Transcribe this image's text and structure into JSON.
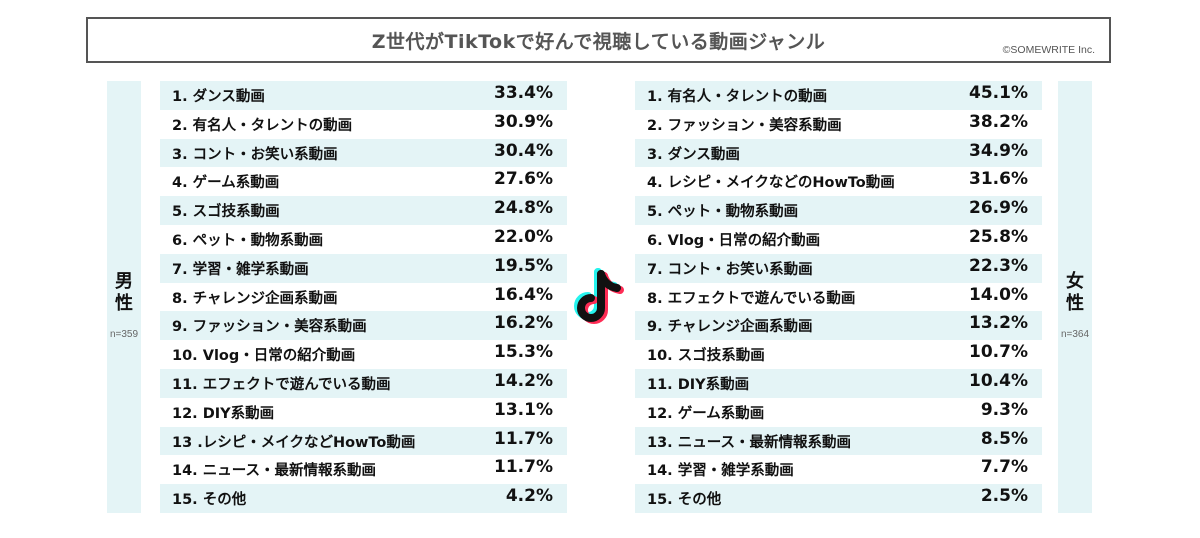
{
  "header": {
    "title": "Z世代がTikTokで好んで視聴している動画ジャンル",
    "copyright": "©SOMEWRITE Inc."
  },
  "male": {
    "label_line1": "男",
    "label_line2": "性",
    "n": "n=359"
  },
  "female": {
    "label_line1": "女",
    "label_line2": "性",
    "n": "n=364"
  },
  "logo_icon": "tiktok-logo-icon",
  "colors": {
    "row_shade": "#e4f4f6",
    "title_border": "#555555",
    "logo_cyan": "#25f4ee",
    "logo_red": "#fe2c55"
  },
  "chart_data": [
    {
      "type": "table",
      "group": "男性",
      "rows": [
        {
          "label": "1. ダンス動画",
          "value": "33.4%"
        },
        {
          "label": "2. 有名人・タレントの動画",
          "value": "30.9%"
        },
        {
          "label": "3. コント・お笑い系動画",
          "value": "30.4%"
        },
        {
          "label": "4. ゲーム系動画",
          "value": "27.6%"
        },
        {
          "label": "5. スゴ技系動画",
          "value": "24.8%"
        },
        {
          "label": "6. ペット・動物系動画",
          "value": "22.0%"
        },
        {
          "label": "7. 学習・雑学系動画",
          "value": "19.5%"
        },
        {
          "label": "8. チャレンジ企画系動画",
          "value": "16.4%"
        },
        {
          "label": "9. ファッション・美容系動画",
          "value": "16.2%"
        },
        {
          "label": "10. Vlog・日常の紹介動画",
          "value": "15.3%"
        },
        {
          "label": "11. エフェクトで遊んでいる動画",
          "value": "14.2%"
        },
        {
          "label": "12. DIY系動画",
          "value": "13.1%"
        },
        {
          "label": "13 .レシピ・メイクなどHowTo動画",
          "value": "11.7%"
        },
        {
          "label": "14. ニュース・最新情報系動画",
          "value": "11.7%"
        },
        {
          "label": "15. その他",
          "value": "4.2%"
        }
      ]
    },
    {
      "type": "table",
      "group": "女性",
      "rows": [
        {
          "label": "1. 有名人・タレントの動画",
          "value": "45.1%"
        },
        {
          "label": "2. ファッション・美容系動画",
          "value": "38.2%"
        },
        {
          "label": "3. ダンス動画",
          "value": "34.9%"
        },
        {
          "label": "4. レシピ・メイクなどのHowTo動画",
          "value": "31.6%"
        },
        {
          "label": "5. ペット・動物系動画",
          "value": "26.9%"
        },
        {
          "label": "6. Vlog・日常の紹介動画",
          "value": "25.8%"
        },
        {
          "label": "7. コント・お笑い系動画",
          "value": "22.3%"
        },
        {
          "label": "8. エフェクトで遊んでいる動画",
          "value": "14.0%"
        },
        {
          "label": "9. チャレンジ企画系動画",
          "value": "13.2%"
        },
        {
          "label": "10. スゴ技系動画",
          "value": "10.7%"
        },
        {
          "label": "11. DIY系動画",
          "value": "10.4%"
        },
        {
          "label": "12. ゲーム系動画",
          "value": "9.3%"
        },
        {
          "label": "13. ニュース・最新情報系動画",
          "value": "8.5%"
        },
        {
          "label": "14. 学習・雑学系動画",
          "value": "7.7%"
        },
        {
          "label": "15. その他",
          "value": "2.5%"
        }
      ]
    }
  ]
}
